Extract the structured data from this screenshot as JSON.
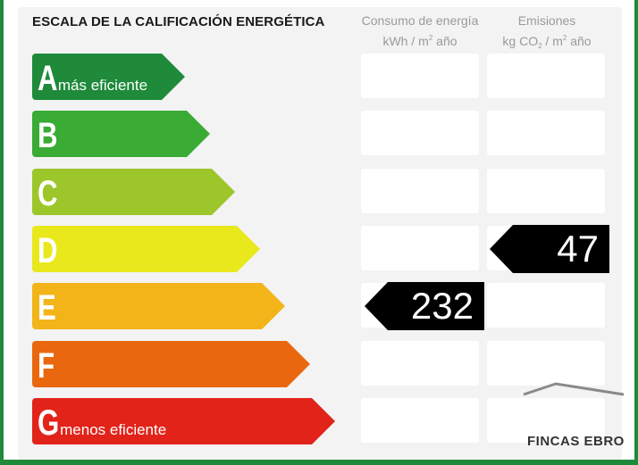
{
  "title": "ESCALA DE LA CALIFICACIÓN ENERGÉTICA",
  "columns": {
    "consumption": {
      "line1": "Consumo de energía",
      "line2_pre": "kWh / m",
      "line2_sup": "2",
      "line2_post": " año"
    },
    "emissions": {
      "line1": "Emisiones",
      "line2_pre": "kg CO",
      "line2_sub": "2",
      "line2_mid": " / m",
      "line2_sup": "2",
      "line2_post": " año"
    }
  },
  "ratings": [
    {
      "letter": "A",
      "note": "más eficiente",
      "color": "#1e8a3a"
    },
    {
      "letter": "B",
      "note": "",
      "color": "#3aab34"
    },
    {
      "letter": "C",
      "note": "",
      "color": "#9cc62a"
    },
    {
      "letter": "D",
      "note": "",
      "color": "#e9e81d"
    },
    {
      "letter": "E",
      "note": "",
      "color": "#f2b418"
    },
    {
      "letter": "F",
      "note": "",
      "color": "#e9680f"
    },
    {
      "letter": "G",
      "note": "menos eficiente",
      "color": "#e2231a"
    }
  ],
  "indicators": {
    "consumption": {
      "value": "232",
      "rating": "E"
    },
    "emissions": {
      "value": "47",
      "rating": "D"
    }
  },
  "watermark": "FINCAS EBRO"
}
